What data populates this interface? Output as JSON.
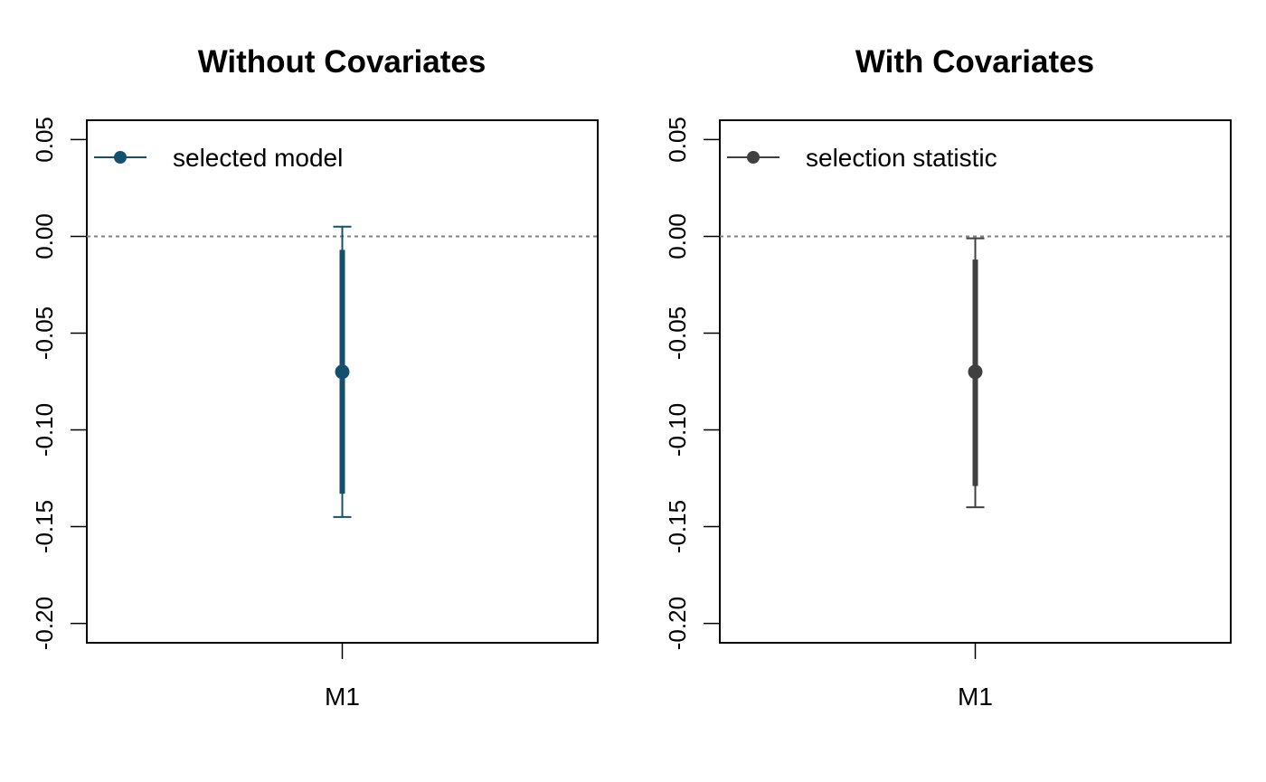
{
  "chart_data": [
    {
      "type": "scatter",
      "title": "Without Covariates",
      "xlabel": "",
      "ylabel": "",
      "categories": [
        "M1"
      ],
      "ylim": [
        -0.21,
        0.06
      ],
      "yticks": [
        0.05,
        0.0,
        -0.05,
        -0.1,
        -0.15,
        -0.2
      ],
      "ytick_labels": [
        "0.05",
        "0.00",
        "-0.05",
        "-0.10",
        "-0.15",
        "-0.20"
      ],
      "reference_line": 0.0,
      "legend": {
        "label": "selected model",
        "position": "top-left"
      },
      "color": "#14506e",
      "points": [
        {
          "category": "M1",
          "estimate": -0.07,
          "inner_low": -0.133,
          "inner_high": -0.007,
          "outer_low": -0.145,
          "outer_high": 0.005
        }
      ]
    },
    {
      "type": "scatter",
      "title": "With Covariates",
      "xlabel": "",
      "ylabel": "",
      "categories": [
        "M1"
      ],
      "ylim": [
        -0.21,
        0.06
      ],
      "yticks": [
        0.05,
        0.0,
        -0.05,
        -0.1,
        -0.15,
        -0.2
      ],
      "ytick_labels": [
        "0.05",
        "0.00",
        "-0.05",
        "-0.10",
        "-0.15",
        "-0.20"
      ],
      "reference_line": 0.0,
      "legend": {
        "label": "selection statistic",
        "position": "top-left"
      },
      "color": "#404040",
      "points": [
        {
          "category": "M1",
          "estimate": -0.07,
          "inner_low": -0.129,
          "inner_high": -0.012,
          "outer_low": -0.14,
          "outer_high": -0.001
        }
      ]
    }
  ]
}
